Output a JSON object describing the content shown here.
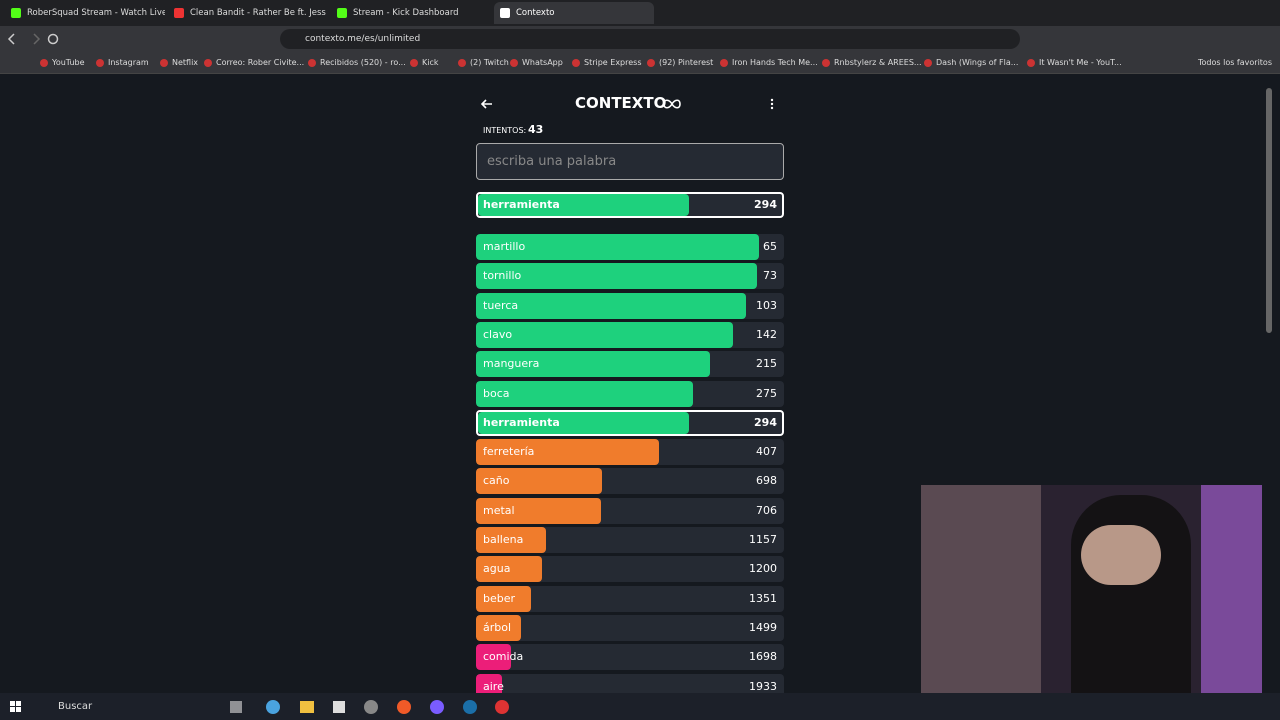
{
  "browser": {
    "tabs": [
      "RoberSquad Stream - Watch Live",
      "Clean Bandit - Rather Be ft. Jess G",
      "Stream - Kick Dashboard",
      "Contexto"
    ],
    "url": "contexto.me/es/unlimited",
    "bookmarks": [
      "YouTube",
      "Instagram",
      "Netflix",
      "Correo: Rober Civite...",
      "Recibidos (520) - ro...",
      "Kick",
      "(2) Twitch",
      "WhatsApp",
      "Stripe Express",
      "(92) Pinterest",
      "Iron Hands Tech Me...",
      "Rnbstylerz & AREES...",
      "Dash (Wings of Fla...",
      "It Wasn't Me - YouT..."
    ],
    "all_bookmarks": "Todos los favoritos"
  },
  "game": {
    "title": "CONTEXTO",
    "attempts_label": "INTENTOS:",
    "attempts": 43,
    "placeholder": "escriba una palabra",
    "last_guess": {
      "word": "herramienta",
      "rank": 294
    },
    "guesses": [
      {
        "word": "martillo",
        "rank": 65
      },
      {
        "word": "tornillo",
        "rank": 73
      },
      {
        "word": "tuerca",
        "rank": 103
      },
      {
        "word": "clavo",
        "rank": 142
      },
      {
        "word": "manguera",
        "rank": 215
      },
      {
        "word": "boca",
        "rank": 275
      },
      {
        "word": "herramienta",
        "rank": 294
      },
      {
        "word": "ferretería",
        "rank": 407
      },
      {
        "word": "caño",
        "rank": 698
      },
      {
        "word": "metal",
        "rank": 706
      },
      {
        "word": "ballena",
        "rank": 1157
      },
      {
        "word": "agua",
        "rank": 1200
      },
      {
        "word": "beber",
        "rank": 1351
      },
      {
        "word": "árbol",
        "rank": 1499
      },
      {
        "word": "comida",
        "rank": 1698
      },
      {
        "word": "aire",
        "rank": 1933
      }
    ]
  },
  "taskbar": {
    "search": "Buscar"
  }
}
